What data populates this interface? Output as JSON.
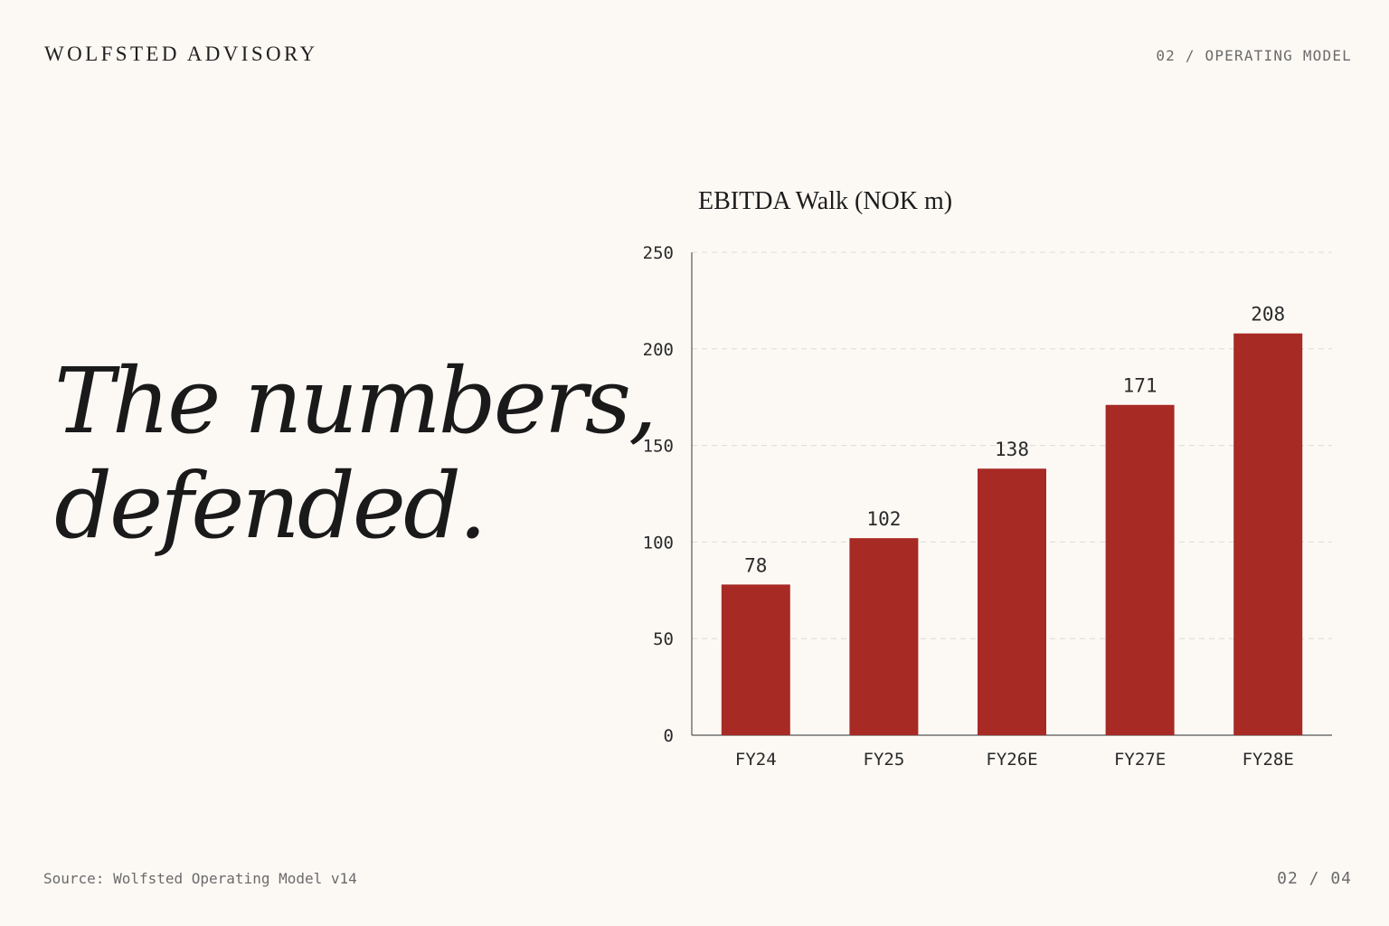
{
  "header": {
    "brand": "WOLFSTED ADVISORY",
    "section": "02 / OPERATING MODEL"
  },
  "headline": {
    "line1": "The numbers,",
    "line2": "defended."
  },
  "footer": {
    "source": "Source: Wolfsted Operating Model v14",
    "page": "02 / 04"
  },
  "colors": {
    "bar": "#a82a25",
    "background": "#fcf9f5",
    "text": "#1c1c1c"
  },
  "chart_data": {
    "type": "bar",
    "title": "EBITDA Walk (NOK m)",
    "xlabel": "",
    "ylabel": "",
    "categories": [
      "FY24",
      "FY25",
      "FY26E",
      "FY27E",
      "FY28E"
    ],
    "values": [
      78,
      102,
      138,
      171,
      208
    ],
    "data_labels": [
      "78",
      "102",
      "138",
      "171",
      "208"
    ],
    "ylim": [
      0,
      250
    ],
    "yticks": [
      0,
      50,
      100,
      150,
      200,
      250
    ],
    "grid": true,
    "legend": "none"
  }
}
